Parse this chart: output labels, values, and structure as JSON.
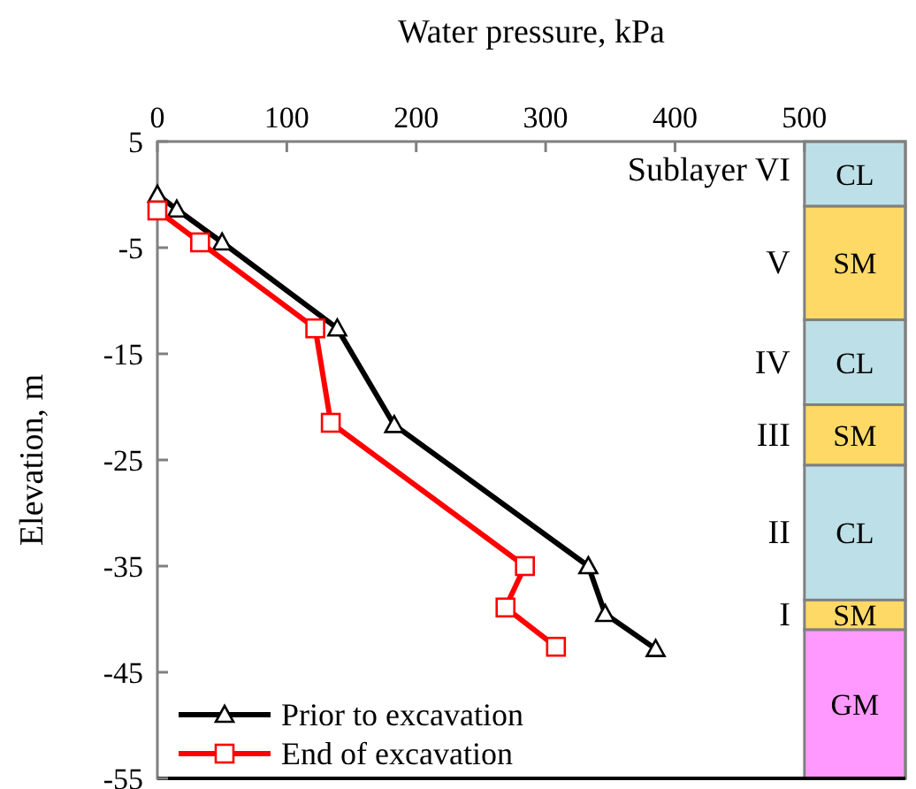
{
  "chart_data": {
    "type": "line",
    "xlabel": "Water pressure, kPa",
    "ylabel": "Elevation, m",
    "xlim": [
      0,
      578
    ],
    "xticks": [
      0,
      100,
      200,
      300,
      400,
      500
    ],
    "ylim": [
      -55,
      5
    ],
    "yticks": [
      5,
      -5,
      -15,
      -25,
      -35,
      -45,
      -55
    ],
    "legend": "bottom left",
    "grid": false,
    "line_style": "solid",
    "series": [
      {
        "name": "Prior to excavation",
        "color": "#000000",
        "marker": "triangle",
        "x": [
          0,
          15,
          50,
          139,
          183,
          333,
          346,
          385
        ],
        "values": [
          0,
          -1.4,
          -4.5,
          -12.6,
          -21.7,
          -35,
          -39.5,
          -42.8
        ]
      },
      {
        "name": "End of excavation",
        "color": "#ff0000",
        "marker": "square",
        "x": [
          0,
          33,
          122,
          134,
          284,
          269,
          308
        ],
        "values": [
          -1.5,
          -4.5,
          -12.6,
          -21.5,
          -35,
          -38.9,
          -42.6
        ]
      }
    ],
    "bands": [
      {
        "axis": "y",
        "from": 5,
        "to": -1.1,
        "label": "CL",
        "color": "#bde0e8"
      },
      {
        "axis": "y",
        "from": -1.1,
        "to": -11.8,
        "label": "SM",
        "color": "#ffd966"
      },
      {
        "axis": "y",
        "from": -11.8,
        "to": -19.8,
        "label": "CL",
        "color": "#bde0e8"
      },
      {
        "axis": "y",
        "from": -19.8,
        "to": -25.5,
        "label": "SM",
        "color": "#ffd966"
      },
      {
        "axis": "y",
        "from": -25.5,
        "to": -38.2,
        "label": "CL",
        "color": "#bde0e8"
      },
      {
        "axis": "y",
        "from": -38.2,
        "to": -41,
        "label": "SM",
        "color": "#ffd966"
      },
      {
        "axis": "y",
        "from": -41,
        "to": -55,
        "label": "GM",
        "color": "#ff99ff"
      }
    ],
    "annotations": [
      "Sublayer VI",
      "V",
      "IV",
      "III",
      "II",
      "I"
    ]
  }
}
